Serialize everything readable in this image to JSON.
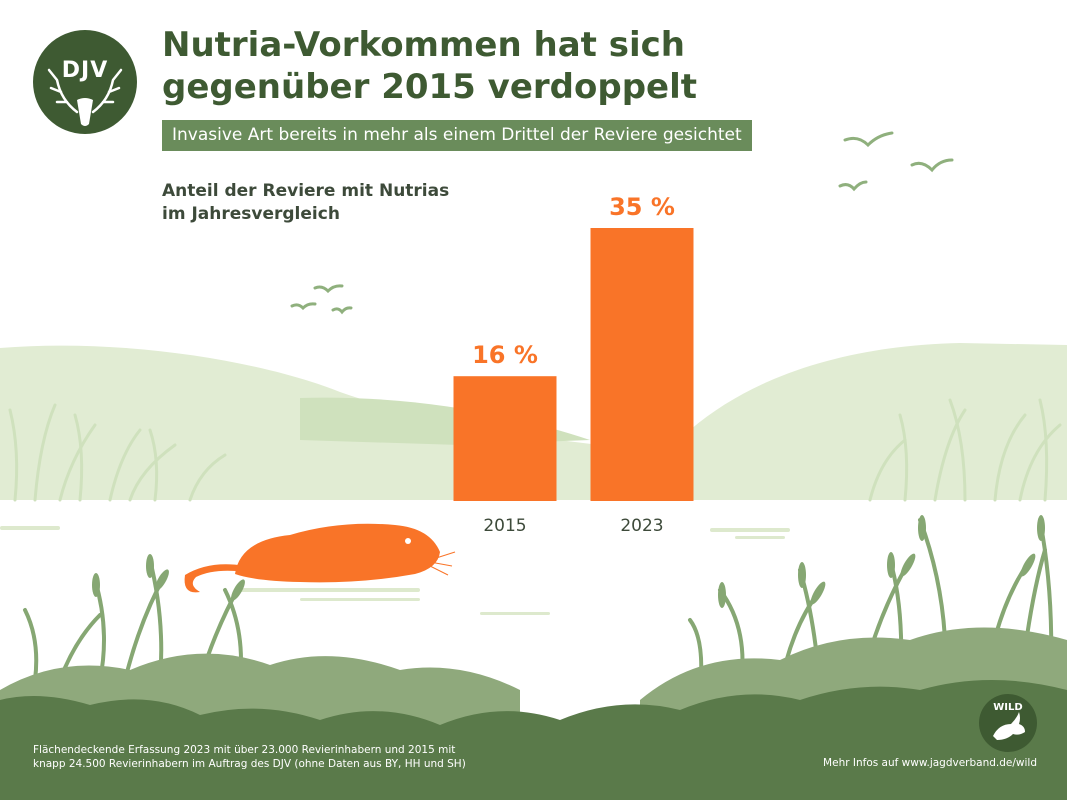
{
  "logo": {
    "text": "DJV"
  },
  "header": {
    "title_lines": [
      "Nutria-Vorkommen hat sich",
      "gegenüber 2015 verdoppelt"
    ],
    "subtitle": "Invasive Art bereits in mehr als einem Drittel der Reviere gesichtet"
  },
  "chart_data": {
    "type": "bar",
    "title_lines": [
      "Anteil der Reviere mit Nutrias",
      "im Jahresvergleich"
    ],
    "categories": [
      "2015",
      "2023"
    ],
    "values": [
      16,
      35
    ],
    "value_labels": [
      "16 %",
      "35 %"
    ],
    "unit": "%",
    "ylim": [
      0,
      40
    ],
    "grid": false,
    "legend": "none",
    "bar_color": "#f97428",
    "label_color": "#f97428",
    "tick_color": "#3d4a3a"
  },
  "footer": {
    "footnote_lines": [
      "Flächendeckende Erfassung 2023 mit über 23.000 Revierinhabern und 2015 mit",
      "knapp 24.500 Revierinhabern im Auftrag des DJV (ohne Daten aus BY, HH und SH)"
    ],
    "more_info": "Mehr Infos auf www.jagdverband.de/wild",
    "badge_text": "WILD"
  },
  "colors": {
    "dark_green": "#3e5a32",
    "mid_green": "#6a8c5b",
    "light_green": "#dde9cd",
    "accent_orange": "#f97428"
  },
  "icons": [
    "deer-antler-icon",
    "bird-icon",
    "nutria-illustration",
    "hare-icon",
    "reed-icon"
  ]
}
